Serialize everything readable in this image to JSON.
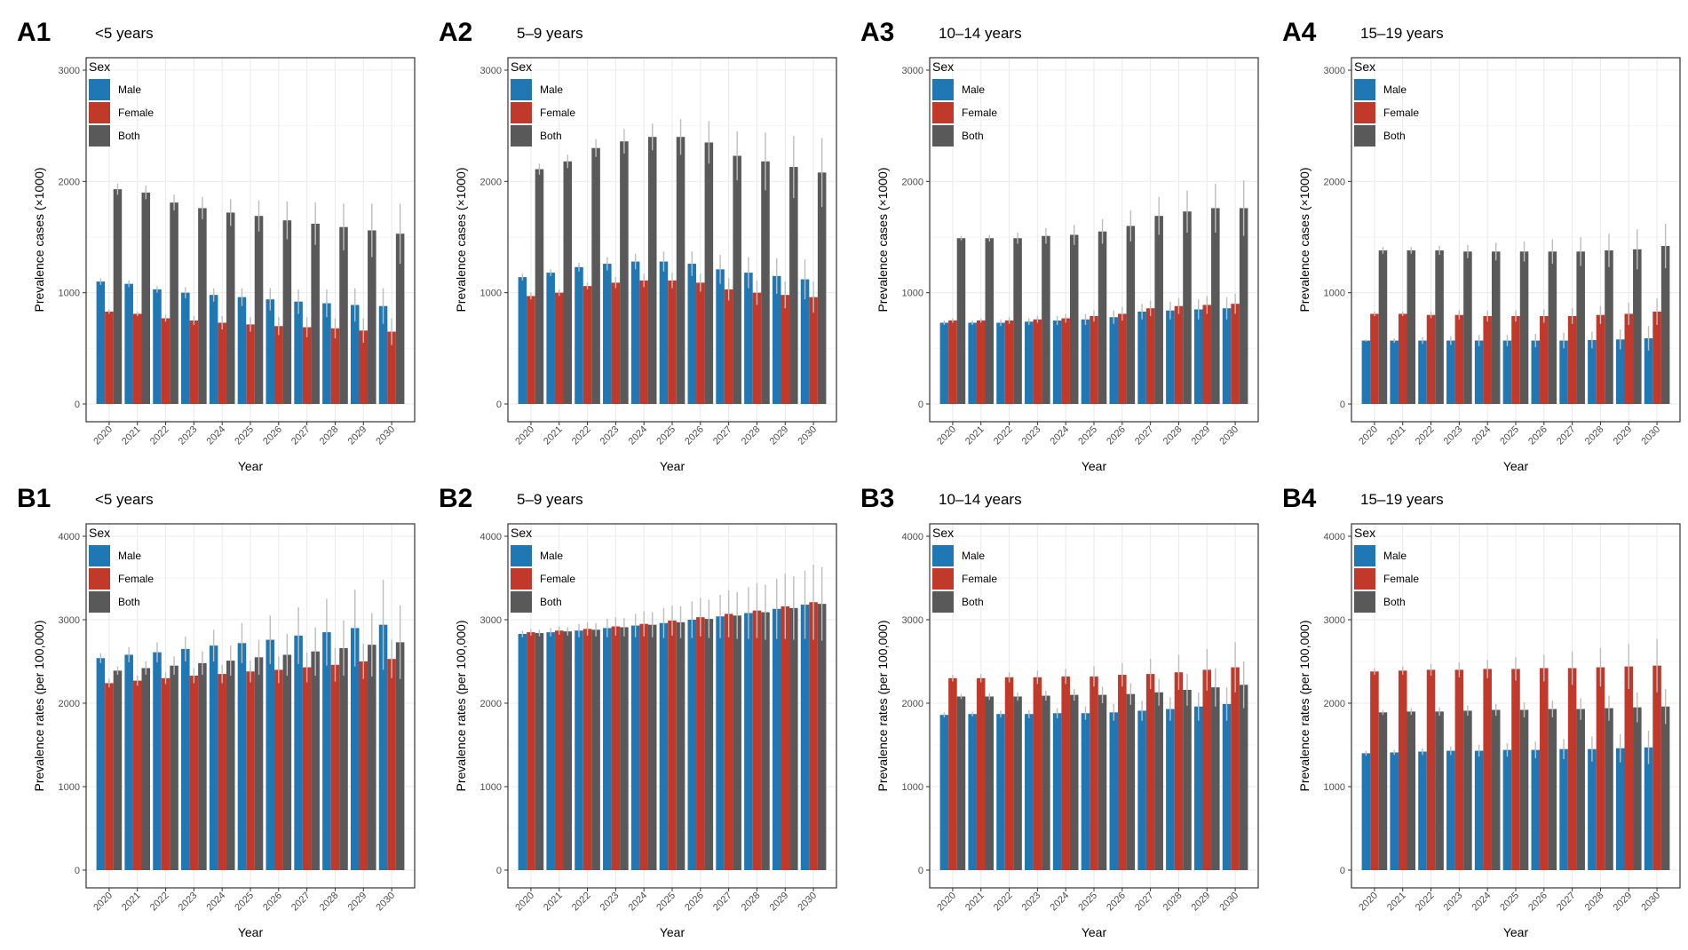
{
  "figure": {
    "legend_title": "Sex",
    "series_names": [
      "Male",
      "Female",
      "Both"
    ],
    "colors": {
      "Male": "#1f77b4",
      "Female": "#c0392b",
      "Both": "#595959",
      "error_bar": "#bdbdbd",
      "grid": "#ebebeb",
      "panel_border": "#333333"
    }
  },
  "chart_data": [
    {
      "id": "A1",
      "label": "A1",
      "title": "<5 years",
      "type": "bar",
      "xlabel": "Year",
      "ylabel": "Prevalence cases (×1000)",
      "ylim": [
        0,
        3000
      ],
      "yticks": [
        0,
        1000,
        2000,
        3000
      ],
      "categories": [
        "2020",
        "2021",
        "2022",
        "2023",
        "2024",
        "2025",
        "2026",
        "2027",
        "2028",
        "2029",
        "2030"
      ],
      "series": [
        {
          "name": "Male",
          "values": [
            1100,
            1080,
            1030,
            1000,
            980,
            960,
            940,
            920,
            905,
            890,
            880
          ],
          "upper": [
            1130,
            1110,
            1060,
            1050,
            1040,
            1040,
            1040,
            1030,
            1030,
            1040,
            1040
          ]
        },
        {
          "name": "Female",
          "values": [
            830,
            810,
            770,
            750,
            730,
            715,
            700,
            690,
            680,
            660,
            650
          ],
          "upper": [
            850,
            830,
            800,
            790,
            790,
            780,
            780,
            780,
            770,
            770,
            770
          ]
        },
        {
          "name": "Both",
          "values": [
            1930,
            1900,
            1810,
            1760,
            1720,
            1690,
            1650,
            1620,
            1590,
            1560,
            1530
          ],
          "upper": [
            1980,
            1960,
            1880,
            1860,
            1840,
            1830,
            1820,
            1810,
            1800,
            1800,
            1800
          ]
        }
      ]
    },
    {
      "id": "A2",
      "label": "A2",
      "title": "5–9 years",
      "type": "bar",
      "xlabel": "Year",
      "ylabel": "Prevalence cases (×1000)",
      "ylim": [
        0,
        3000
      ],
      "yticks": [
        0,
        1000,
        2000,
        3000
      ],
      "categories": [
        "2020",
        "2021",
        "2022",
        "2023",
        "2024",
        "2025",
        "2026",
        "2027",
        "2028",
        "2029",
        "2030"
      ],
      "series": [
        {
          "name": "Male",
          "values": [
            1140,
            1180,
            1230,
            1260,
            1280,
            1280,
            1260,
            1210,
            1180,
            1150,
            1120
          ],
          "upper": [
            1170,
            1210,
            1270,
            1320,
            1350,
            1370,
            1370,
            1340,
            1320,
            1310,
            1300
          ]
        },
        {
          "name": "Female",
          "values": [
            970,
            1000,
            1060,
            1090,
            1110,
            1110,
            1090,
            1030,
            1000,
            980,
            960
          ],
          "upper": [
            1000,
            1030,
            1090,
            1140,
            1170,
            1180,
            1170,
            1130,
            1110,
            1100,
            1100
          ]
        },
        {
          "name": "Both",
          "values": [
            2110,
            2180,
            2300,
            2360,
            2400,
            2400,
            2350,
            2230,
            2180,
            2130,
            2080
          ],
          "upper": [
            2160,
            2240,
            2380,
            2470,
            2520,
            2560,
            2540,
            2450,
            2440,
            2410,
            2390
          ]
        }
      ]
    },
    {
      "id": "A3",
      "label": "A3",
      "title": "10–14 years",
      "type": "bar",
      "xlabel": "Year",
      "ylabel": "Prevalence cases (×1000)",
      "ylim": [
        0,
        3000
      ],
      "yticks": [
        0,
        1000,
        2000,
        3000
      ],
      "categories": [
        "2020",
        "2021",
        "2022",
        "2023",
        "2024",
        "2025",
        "2026",
        "2027",
        "2028",
        "2029",
        "2030"
      ],
      "series": [
        {
          "name": "Male",
          "values": [
            730,
            730,
            730,
            740,
            750,
            760,
            780,
            830,
            840,
            850,
            860
          ],
          "upper": [
            750,
            750,
            760,
            770,
            790,
            810,
            840,
            900,
            920,
            940,
            960
          ]
        },
        {
          "name": "Female",
          "values": [
            750,
            750,
            750,
            760,
            770,
            790,
            810,
            860,
            880,
            890,
            900
          ],
          "upper": [
            770,
            770,
            780,
            790,
            810,
            840,
            870,
            930,
            950,
            970,
            990
          ]
        },
        {
          "name": "Both",
          "values": [
            1490,
            1490,
            1490,
            1510,
            1520,
            1550,
            1600,
            1690,
            1730,
            1760,
            1760
          ],
          "upper": [
            1510,
            1520,
            1540,
            1580,
            1610,
            1660,
            1740,
            1860,
            1920,
            1980,
            2010
          ]
        }
      ]
    },
    {
      "id": "A4",
      "label": "A4",
      "title": "15–19 years",
      "type": "bar",
      "xlabel": "Year",
      "ylabel": "Prevalence cases (×1000)",
      "ylim": [
        0,
        3000
      ],
      "yticks": [
        0,
        1000,
        2000,
        3000
      ],
      "categories": [
        "2020",
        "2021",
        "2022",
        "2023",
        "2024",
        "2025",
        "2026",
        "2027",
        "2028",
        "2029",
        "2030"
      ],
      "series": [
        {
          "name": "Male",
          "values": [
            570,
            570,
            570,
            570,
            570,
            570,
            570,
            570,
            575,
            580,
            590
          ],
          "upper": [
            580,
            590,
            600,
            610,
            620,
            620,
            630,
            640,
            650,
            670,
            700
          ]
        },
        {
          "name": "Female",
          "values": [
            810,
            810,
            800,
            800,
            790,
            790,
            790,
            790,
            800,
            810,
            830
          ],
          "upper": [
            830,
            830,
            830,
            840,
            840,
            840,
            850,
            860,
            880,
            910,
            950
          ]
        },
        {
          "name": "Both",
          "values": [
            1380,
            1380,
            1380,
            1370,
            1370,
            1370,
            1370,
            1370,
            1380,
            1390,
            1420
          ],
          "upper": [
            1410,
            1410,
            1420,
            1430,
            1450,
            1460,
            1480,
            1500,
            1530,
            1570,
            1620
          ]
        }
      ]
    },
    {
      "id": "B1",
      "label": "B1",
      "title": "<5 years",
      "type": "bar",
      "xlabel": "Year",
      "ylabel": "Prevalence rates (per 100,000)",
      "ylim": [
        0,
        4000
      ],
      "yticks": [
        0,
        1000,
        2000,
        3000,
        4000
      ],
      "categories": [
        "2020",
        "2021",
        "2022",
        "2023",
        "2024",
        "2025",
        "2026",
        "2027",
        "2028",
        "2029",
        "2030"
      ],
      "series": [
        {
          "name": "Male",
          "values": [
            2540,
            2580,
            2610,
            2650,
            2690,
            2720,
            2760,
            2810,
            2850,
            2900,
            2940
          ],
          "upper": [
            2600,
            2670,
            2730,
            2800,
            2880,
            2960,
            3050,
            3150,
            3250,
            3360,
            3480
          ]
        },
        {
          "name": "Female",
          "values": [
            2240,
            2270,
            2300,
            2330,
            2350,
            2380,
            2400,
            2430,
            2460,
            2500,
            2530
          ],
          "upper": [
            2290,
            2330,
            2370,
            2420,
            2460,
            2510,
            2560,
            2610,
            2660,
            2710,
            2760
          ]
        },
        {
          "name": "Both",
          "values": [
            2390,
            2420,
            2450,
            2480,
            2510,
            2550,
            2580,
            2620,
            2660,
            2700,
            2730
          ],
          "upper": [
            2440,
            2500,
            2560,
            2620,
            2690,
            2760,
            2830,
            2910,
            2990,
            3080,
            3170
          ]
        }
      ]
    },
    {
      "id": "B2",
      "label": "B2",
      "title": "5–9 years",
      "type": "bar",
      "xlabel": "Year",
      "ylabel": "Prevalence rates (per 100,000)",
      "ylim": [
        0,
        4000
      ],
      "yticks": [
        0,
        1000,
        2000,
        3000,
        4000
      ],
      "categories": [
        "2020",
        "2021",
        "2022",
        "2023",
        "2024",
        "2025",
        "2026",
        "2027",
        "2028",
        "2029",
        "2030"
      ],
      "series": [
        {
          "name": "Male",
          "values": [
            2830,
            2850,
            2870,
            2900,
            2930,
            2960,
            3000,
            3040,
            3080,
            3130,
            3180
          ],
          "upper": [
            2870,
            2900,
            2950,
            3010,
            3070,
            3140,
            3220,
            3300,
            3390,
            3490,
            3590
          ]
        },
        {
          "name": "Female",
          "values": [
            2850,
            2870,
            2890,
            2920,
            2950,
            2990,
            3030,
            3070,
            3110,
            3160,
            3210
          ],
          "upper": [
            2890,
            2920,
            2970,
            3030,
            3100,
            3170,
            3260,
            3350,
            3440,
            3550,
            3660
          ]
        },
        {
          "name": "Both",
          "values": [
            2840,
            2860,
            2880,
            2910,
            2940,
            2970,
            3010,
            3050,
            3090,
            3140,
            3190
          ],
          "upper": [
            2880,
            2910,
            2960,
            3020,
            3090,
            3160,
            3240,
            3330,
            3420,
            3520,
            3630
          ]
        }
      ]
    },
    {
      "id": "B3",
      "label": "B3",
      "title": "10–14 years",
      "type": "bar",
      "xlabel": "Year",
      "ylabel": "Prevalence rates (per 100,000)",
      "ylim": [
        0,
        4000
      ],
      "yticks": [
        0,
        1000,
        2000,
        3000,
        4000
      ],
      "categories": [
        "2020",
        "2021",
        "2022",
        "2023",
        "2024",
        "2025",
        "2026",
        "2027",
        "2028",
        "2029",
        "2030"
      ],
      "series": [
        {
          "name": "Male",
          "values": [
            1860,
            1870,
            1870,
            1870,
            1880,
            1880,
            1890,
            1910,
            1930,
            1960,
            1990
          ],
          "upper": [
            1890,
            1900,
            1910,
            1920,
            1940,
            1960,
            1990,
            2030,
            2070,
            2130,
            2190
          ]
        },
        {
          "name": "Female",
          "values": [
            2300,
            2300,
            2310,
            2310,
            2320,
            2320,
            2340,
            2350,
            2370,
            2400,
            2430
          ],
          "upper": [
            2340,
            2350,
            2370,
            2390,
            2410,
            2440,
            2480,
            2530,
            2580,
            2650,
            2730
          ]
        },
        {
          "name": "Both",
          "values": [
            2080,
            2080,
            2080,
            2090,
            2100,
            2100,
            2110,
            2130,
            2160,
            2190,
            2220
          ],
          "upper": [
            2110,
            2120,
            2130,
            2150,
            2170,
            2200,
            2240,
            2290,
            2350,
            2420,
            2500
          ]
        }
      ]
    },
    {
      "id": "B4",
      "label": "B4",
      "title": "15–19 years",
      "type": "bar",
      "xlabel": "Year",
      "ylabel": "Prevalence rates (per 100,000)",
      "ylim": [
        0,
        4000
      ],
      "yticks": [
        0,
        1000,
        2000,
        3000,
        4000
      ],
      "categories": [
        "2020",
        "2021",
        "2022",
        "2023",
        "2024",
        "2025",
        "2026",
        "2027",
        "2028",
        "2029",
        "2030"
      ],
      "series": [
        {
          "name": "Male",
          "values": [
            1400,
            1410,
            1420,
            1430,
            1430,
            1440,
            1440,
            1450,
            1450,
            1460,
            1470
          ],
          "upper": [
            1430,
            1440,
            1460,
            1480,
            1500,
            1520,
            1540,
            1570,
            1600,
            1630,
            1670
          ]
        },
        {
          "name": "Female",
          "values": [
            2380,
            2390,
            2400,
            2400,
            2410,
            2410,
            2420,
            2420,
            2430,
            2440,
            2450
          ],
          "upper": [
            2420,
            2440,
            2470,
            2490,
            2520,
            2550,
            2580,
            2620,
            2660,
            2710,
            2770
          ]
        },
        {
          "name": "Both",
          "values": [
            1890,
            1900,
            1900,
            1910,
            1920,
            1920,
            1930,
            1930,
            1940,
            1950,
            1960
          ],
          "upper": [
            1920,
            1940,
            1950,
            1970,
            1990,
            2010,
            2030,
            2060,
            2090,
            2130,
            2170
          ]
        }
      ]
    }
  ]
}
